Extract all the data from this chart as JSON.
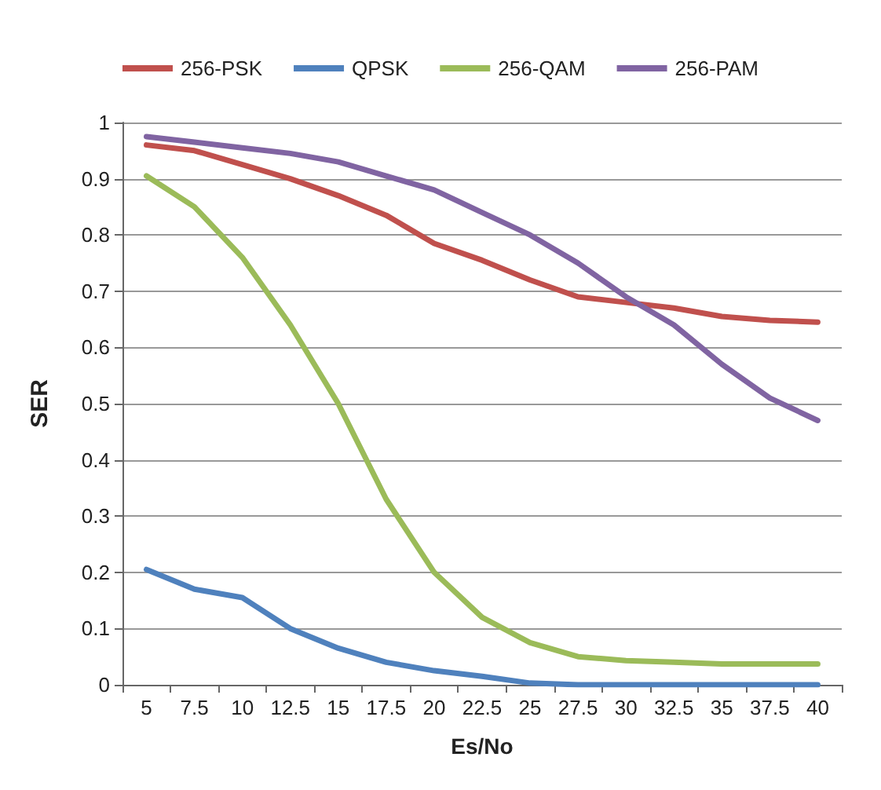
{
  "chart_data": {
    "type": "line",
    "xlabel": "Es/No",
    "ylabel": "SER",
    "categories": [
      "5",
      "7.5",
      "10",
      "12.5",
      "15",
      "17.5",
      "20",
      "22.5",
      "25",
      "27.5",
      "30",
      "32.5",
      "35",
      "37.5",
      "40"
    ],
    "series": [
      {
        "name": "256-PSK",
        "color": "#c0504d",
        "values": [
          0.96,
          0.95,
          0.925,
          0.9,
          0.87,
          0.835,
          0.785,
          0.755,
          0.72,
          0.69,
          0.68,
          0.67,
          0.655,
          0.648,
          0.645
        ]
      },
      {
        "name": "QPSK",
        "color": "#4f81bd",
        "values": [
          0.205,
          0.17,
          0.155,
          0.1,
          0.065,
          0.04,
          0.025,
          0.015,
          0.003,
          0,
          0,
          0,
          0,
          0,
          0
        ]
      },
      {
        "name": "256-QAM",
        "color": "#9bbb59",
        "values": [
          0.905,
          0.85,
          0.76,
          0.64,
          0.5,
          0.33,
          0.2,
          0.12,
          0.075,
          0.05,
          0.043,
          0.04,
          0.037,
          0.037,
          0.037
        ]
      },
      {
        "name": "256-PAM",
        "color": "#8064a2",
        "values": [
          0.975,
          0.965,
          0.955,
          0.945,
          0.93,
          0.905,
          0.88,
          0.84,
          0.8,
          0.75,
          0.69,
          0.64,
          0.57,
          0.51,
          0.47
        ]
      }
    ],
    "ylim": [
      0,
      1
    ],
    "yticks": [
      0,
      0.1,
      0.2,
      0.3,
      0.4,
      0.5,
      0.6,
      0.7,
      0.8,
      0.9,
      1
    ],
    "grid": "y",
    "legend": "top",
    "marker": "none",
    "line_style": "solid"
  }
}
